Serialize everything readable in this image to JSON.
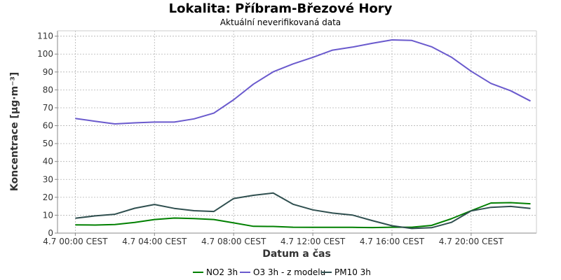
{
  "chart_data": {
    "type": "line",
    "title": "Lokalita: Příbram-Březové Hory",
    "subtitle": "Aktuální neverifikovaná data",
    "xlabel": "Datum a čas",
    "ylabel": "Koncentrace [µg·m⁻³]",
    "ylim": [
      0,
      113
    ],
    "yticks": [
      0,
      10,
      20,
      30,
      40,
      50,
      60,
      70,
      80,
      90,
      100,
      110
    ],
    "x_hours": [
      0,
      1.5,
      3,
      4,
      5,
      6,
      7,
      8,
      9,
      10,
      11,
      12,
      13,
      14,
      15,
      16,
      17,
      18,
      19,
      20,
      21,
      22,
      23
    ],
    "x_range_hours": [
      -0.9,
      23.3
    ],
    "xticks": [
      {
        "hour": 0,
        "label": "4.7 00:00 CEST"
      },
      {
        "hour": 4,
        "label": "4.7 04:00 CEST"
      },
      {
        "hour": 8,
        "label": "4.7 08:00 CEST"
      },
      {
        "hour": 12,
        "label": "4.7 12:00 CEST"
      },
      {
        "hour": 16,
        "label": "4.7 16:00 CEST"
      },
      {
        "hour": 20,
        "label": "4.7 20:00 CEST"
      }
    ],
    "grid": true,
    "legend_position": "bottom",
    "series": [
      {
        "name": "NO2 3h",
        "color": "#008000",
        "x": [
          0,
          1,
          2,
          3,
          4,
          5,
          6,
          7,
          8,
          9,
          10,
          11,
          12,
          13,
          14,
          15,
          16,
          17,
          18,
          19,
          20,
          21,
          22,
          23
        ],
        "values": [
          4.6,
          4.5,
          4.8,
          6.0,
          7.6,
          8.4,
          8.1,
          7.6,
          5.7,
          3.8,
          3.7,
          3.3,
          3.2,
          3.2,
          3.2,
          3.1,
          3.3,
          3.3,
          4.3,
          8.0,
          12.5,
          16.8,
          17.0,
          16.4
        ]
      },
      {
        "name": "O3 3h - z modelu",
        "color": "#6a5acd",
        "x": [
          0,
          1,
          2,
          3,
          4,
          5,
          6,
          7,
          8,
          9,
          10,
          11,
          12,
          13,
          14,
          15,
          16,
          17,
          18,
          19,
          20,
          21,
          22,
          23
        ],
        "values": [
          64.0,
          62.5,
          61.0,
          61.6,
          62.0,
          62.0,
          63.8,
          67.0,
          74.5,
          83.2,
          90.1,
          94.5,
          98.2,
          102.2,
          103.9,
          106.0,
          107.9,
          107.6,
          104.1,
          98.3,
          90.4,
          83.6,
          79.5,
          73.8
        ]
      },
      {
        "name": "PM10 3h",
        "color": "#2f4f4f",
        "x": [
          0,
          1,
          2,
          3,
          4,
          5,
          6,
          7,
          8,
          9,
          10,
          11,
          12,
          13,
          14,
          15,
          16,
          17,
          18,
          19,
          20,
          21,
          22,
          23
        ],
        "values": [
          8.3,
          9.6,
          10.5,
          13.9,
          16.0,
          13.8,
          12.5,
          12.1,
          19.3,
          21.1,
          22.4,
          16.1,
          13.0,
          11.2,
          10.1,
          7.0,
          4.1,
          2.6,
          3.0,
          6.0,
          12.4,
          14.4,
          14.9,
          13.8
        ]
      }
    ]
  }
}
